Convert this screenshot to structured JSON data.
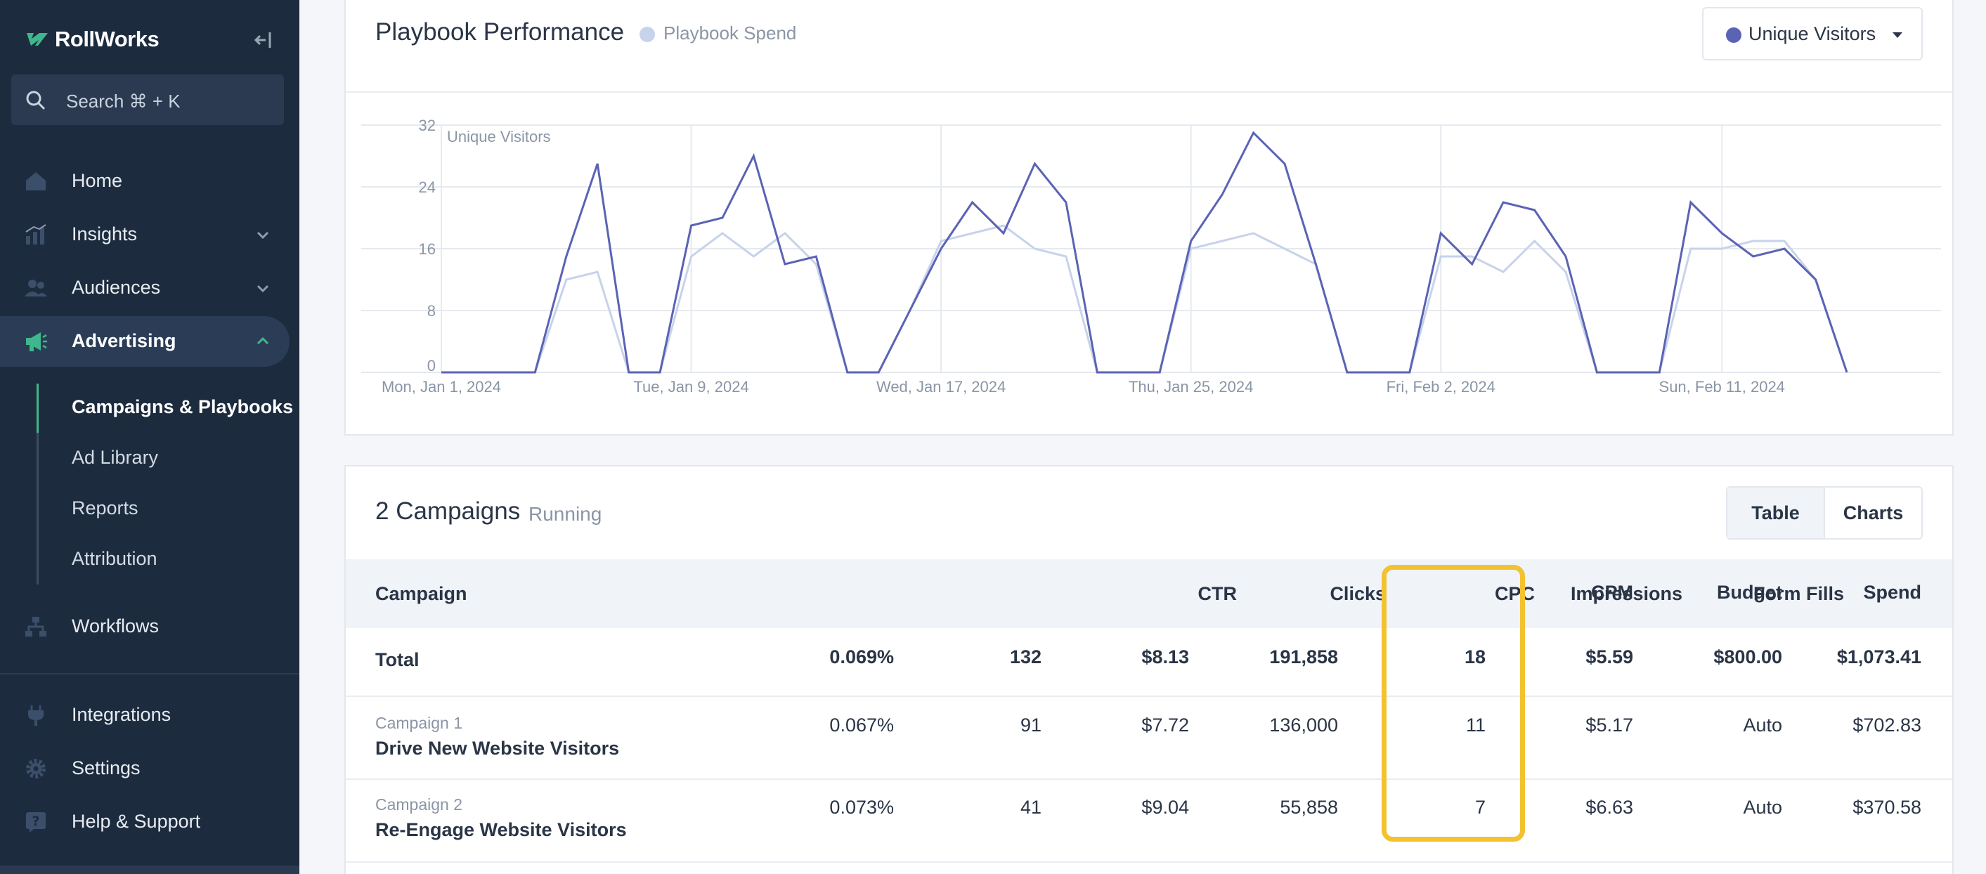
{
  "app": {
    "brand": "RollWorks"
  },
  "search": {
    "label": "Search ⌘ + K"
  },
  "nav": {
    "home": "Home",
    "insights": "Insights",
    "audiences": "Audiences",
    "advertising": "Advertising",
    "sub": [
      "Campaigns & Playbooks",
      "Ad Library",
      "Reports",
      "Attribution"
    ],
    "workflows": "Workflows",
    "integrations": "Integrations",
    "settings": "Settings",
    "help": "Help & Support"
  },
  "performance": {
    "title": "Playbook Performance",
    "legend_label": "Playbook Spend",
    "metric_selected": "Unique Visitors"
  },
  "chart_data": {
    "type": "line",
    "axis_label": "Unique Visitors",
    "ylim": [
      0,
      32
    ],
    "y_ticks": [
      "0",
      "8",
      "16",
      "24",
      "32"
    ],
    "x_tick_labels": [
      "Mon, Jan 1, 2024",
      "Tue, Jan 9, 2024",
      "Wed, Jan 17, 2024",
      "Thu, Jan 25, 2024",
      "Fri, Feb 2, 2024",
      "Sun, Feb 11, 2024"
    ],
    "x_tick_index": [
      0,
      8,
      16,
      24,
      32,
      41
    ],
    "grid": true,
    "series": [
      {
        "color": "#5b63b4",
        "values": [
          0,
          0,
          0,
          0,
          15,
          27,
          0,
          0,
          19,
          20,
          28,
          14,
          15,
          0,
          0,
          8,
          16,
          22,
          18,
          27,
          22,
          0,
          0,
          0,
          17,
          23,
          31,
          27,
          14,
          0,
          0,
          0,
          18,
          14,
          22,
          21,
          15,
          0,
          0,
          0,
          22,
          18,
          15,
          16,
          12,
          0
        ]
      },
      {
        "color": "#c7d3ea",
        "values": [
          0,
          0,
          0,
          0,
          12,
          13,
          0,
          0,
          15,
          18,
          15,
          18,
          14,
          0,
          0,
          8,
          17,
          18,
          19,
          16,
          15,
          0,
          0,
          0,
          16,
          17,
          18,
          16,
          14,
          0,
          0,
          0,
          15,
          15,
          13,
          17,
          13,
          0,
          0,
          0,
          16,
          16,
          17,
          17,
          12,
          0
        ]
      }
    ]
  },
  "campaigns": {
    "title": "2 Campaigns",
    "status": "Running",
    "view_table": "Table",
    "view_charts": "Charts",
    "columns": [
      "Campaign",
      "CTR",
      "Clicks",
      "CPC",
      "Impressions",
      "Form Fills",
      "CPM",
      "Budget",
      "Spend"
    ],
    "total": {
      "label": "Total",
      "ctr": "0.069%",
      "clicks": "132",
      "cpc": "$8.13",
      "impressions": "191,858",
      "form_fills": "18",
      "cpm": "$5.59",
      "budget": "$800.00",
      "spend": "$1,073.41"
    },
    "rows": [
      {
        "tag": "Campaign 1",
        "name": "Drive New Website Visitors",
        "ctr": "0.067%",
        "clicks": "91",
        "cpc": "$7.72",
        "impressions": "136,000",
        "form_fills": "11",
        "cpm": "$5.17",
        "budget": "Auto",
        "spend": "$702.83"
      },
      {
        "tag": "Campaign 2",
        "name": "Re-Engage Website Visitors",
        "ctr": "0.073%",
        "clicks": "41",
        "cpc": "$9.04",
        "impressions": "55,858",
        "form_fills": "7",
        "cpm": "$6.63",
        "budget": "Auto",
        "spend": "$370.58"
      }
    ]
  },
  "colors": {
    "sidebar": "#1d2b3e",
    "accent_green": "#3fb68b",
    "highlight": "#f2c230",
    "series_primary": "#5b63b4",
    "series_secondary": "#c7d3ea"
  }
}
